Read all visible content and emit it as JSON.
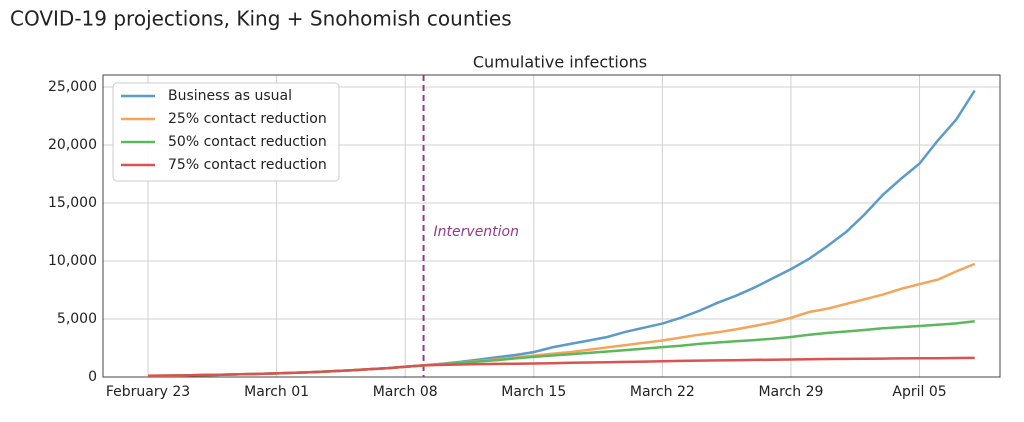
{
  "title": "COVID-19 projections, King + Snohomish counties",
  "chart_data": {
    "type": "line",
    "title": "Cumulative infections",
    "x": [
      "February 23",
      "February 24",
      "February 25",
      "February 26",
      "February 27",
      "February 28",
      "February 29",
      "March 01",
      "March 02",
      "March 03",
      "March 04",
      "March 05",
      "March 06",
      "March 07",
      "March 08",
      "March 09",
      "March 10",
      "March 11",
      "March 12",
      "March 13",
      "March 14",
      "March 15",
      "March 16",
      "March 17",
      "March 18",
      "March 19",
      "March 20",
      "March 21",
      "March 22",
      "March 23",
      "March 24",
      "March 25",
      "March 26",
      "March 27",
      "March 28",
      "March 29",
      "March 30",
      "March 31",
      "April 01",
      "April 02",
      "April 03",
      "April 04",
      "April 05",
      "April 06",
      "April 07",
      "April 08"
    ],
    "series": [
      {
        "name": "Business as usual",
        "color": "#5b9bc8",
        "values": [
          100,
          120,
          140,
          170,
          200,
          230,
          270,
          310,
          360,
          420,
          490,
          570,
          660,
          760,
          880,
          1000,
          1150,
          1300,
          1500,
          1700,
          1900,
          2150,
          2550,
          2850,
          3150,
          3450,
          3900,
          4250,
          4600,
          5100,
          5700,
          6400,
          7000,
          7700,
          8500,
          9300,
          10200,
          11300,
          12500,
          14000,
          15700,
          17100,
          18400,
          20400,
          22200,
          24700
        ]
      },
      {
        "name": "25% contact reduction",
        "color": "#f5a55a",
        "values": [
          100,
          120,
          140,
          170,
          200,
          230,
          270,
          310,
          360,
          420,
          490,
          570,
          660,
          760,
          880,
          1000,
          1120,
          1250,
          1380,
          1520,
          1680,
          1850,
          2000,
          2150,
          2350,
          2550,
          2750,
          2950,
          3150,
          3400,
          3650,
          3850,
          4100,
          4400,
          4700,
          5100,
          5600,
          5900,
          6300,
          6700,
          7100,
          7600,
          8000,
          8400,
          9100,
          9750
        ]
      },
      {
        "name": "50% contact reduction",
        "color": "#5cb85c",
        "values": [
          100,
          120,
          140,
          170,
          200,
          230,
          270,
          310,
          360,
          420,
          490,
          570,
          660,
          760,
          880,
          1000,
          1100,
          1220,
          1340,
          1460,
          1600,
          1730,
          1850,
          1960,
          2080,
          2200,
          2320,
          2450,
          2580,
          2700,
          2850,
          2970,
          3080,
          3180,
          3300,
          3450,
          3650,
          3800,
          3920,
          4050,
          4200,
          4300,
          4400,
          4500,
          4620,
          4800
        ]
      },
      {
        "name": "75% contact reduction",
        "color": "#d9534f",
        "values": [
          100,
          120,
          140,
          170,
          200,
          230,
          270,
          310,
          360,
          420,
          490,
          570,
          660,
          760,
          880,
          1000,
          1040,
          1080,
          1110,
          1130,
          1150,
          1160,
          1190,
          1220,
          1250,
          1280,
          1300,
          1330,
          1360,
          1390,
          1410,
          1430,
          1450,
          1470,
          1490,
          1510,
          1530,
          1550,
          1560,
          1580,
          1590,
          1600,
          1610,
          1620,
          1635,
          1650
        ]
      }
    ],
    "xticks": [
      "February 23",
      "March 01",
      "March 08",
      "March 15",
      "March 22",
      "March 29",
      "April 05"
    ],
    "ylim": [
      0,
      25000
    ],
    "yticks": [
      0,
      {
        "value": 5000,
        "label": "5,000"
      },
      {
        "value": 10000,
        "label": "10,000"
      },
      {
        "value": 15000,
        "label": "15,000"
      },
      {
        "value": 20000,
        "label": "20,000"
      },
      {
        "value": 25000,
        "label": "25,000"
      }
    ],
    "grid": true,
    "legend": "upper left",
    "annotation": {
      "x": "March 09",
      "label": "Intervention",
      "color": "#8e3b8a"
    }
  }
}
